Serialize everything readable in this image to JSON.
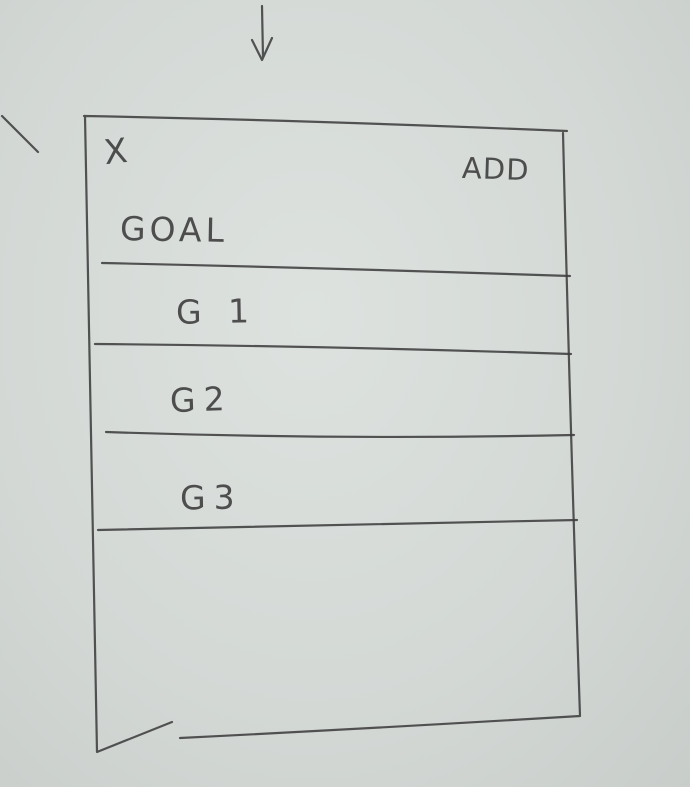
{
  "header": {
    "close_mark": "X",
    "add_label": "ADD"
  },
  "list": {
    "title": "GOAL",
    "items": [
      {
        "label": "G 1"
      },
      {
        "label": "G2"
      },
      {
        "label": "G3"
      }
    ]
  }
}
